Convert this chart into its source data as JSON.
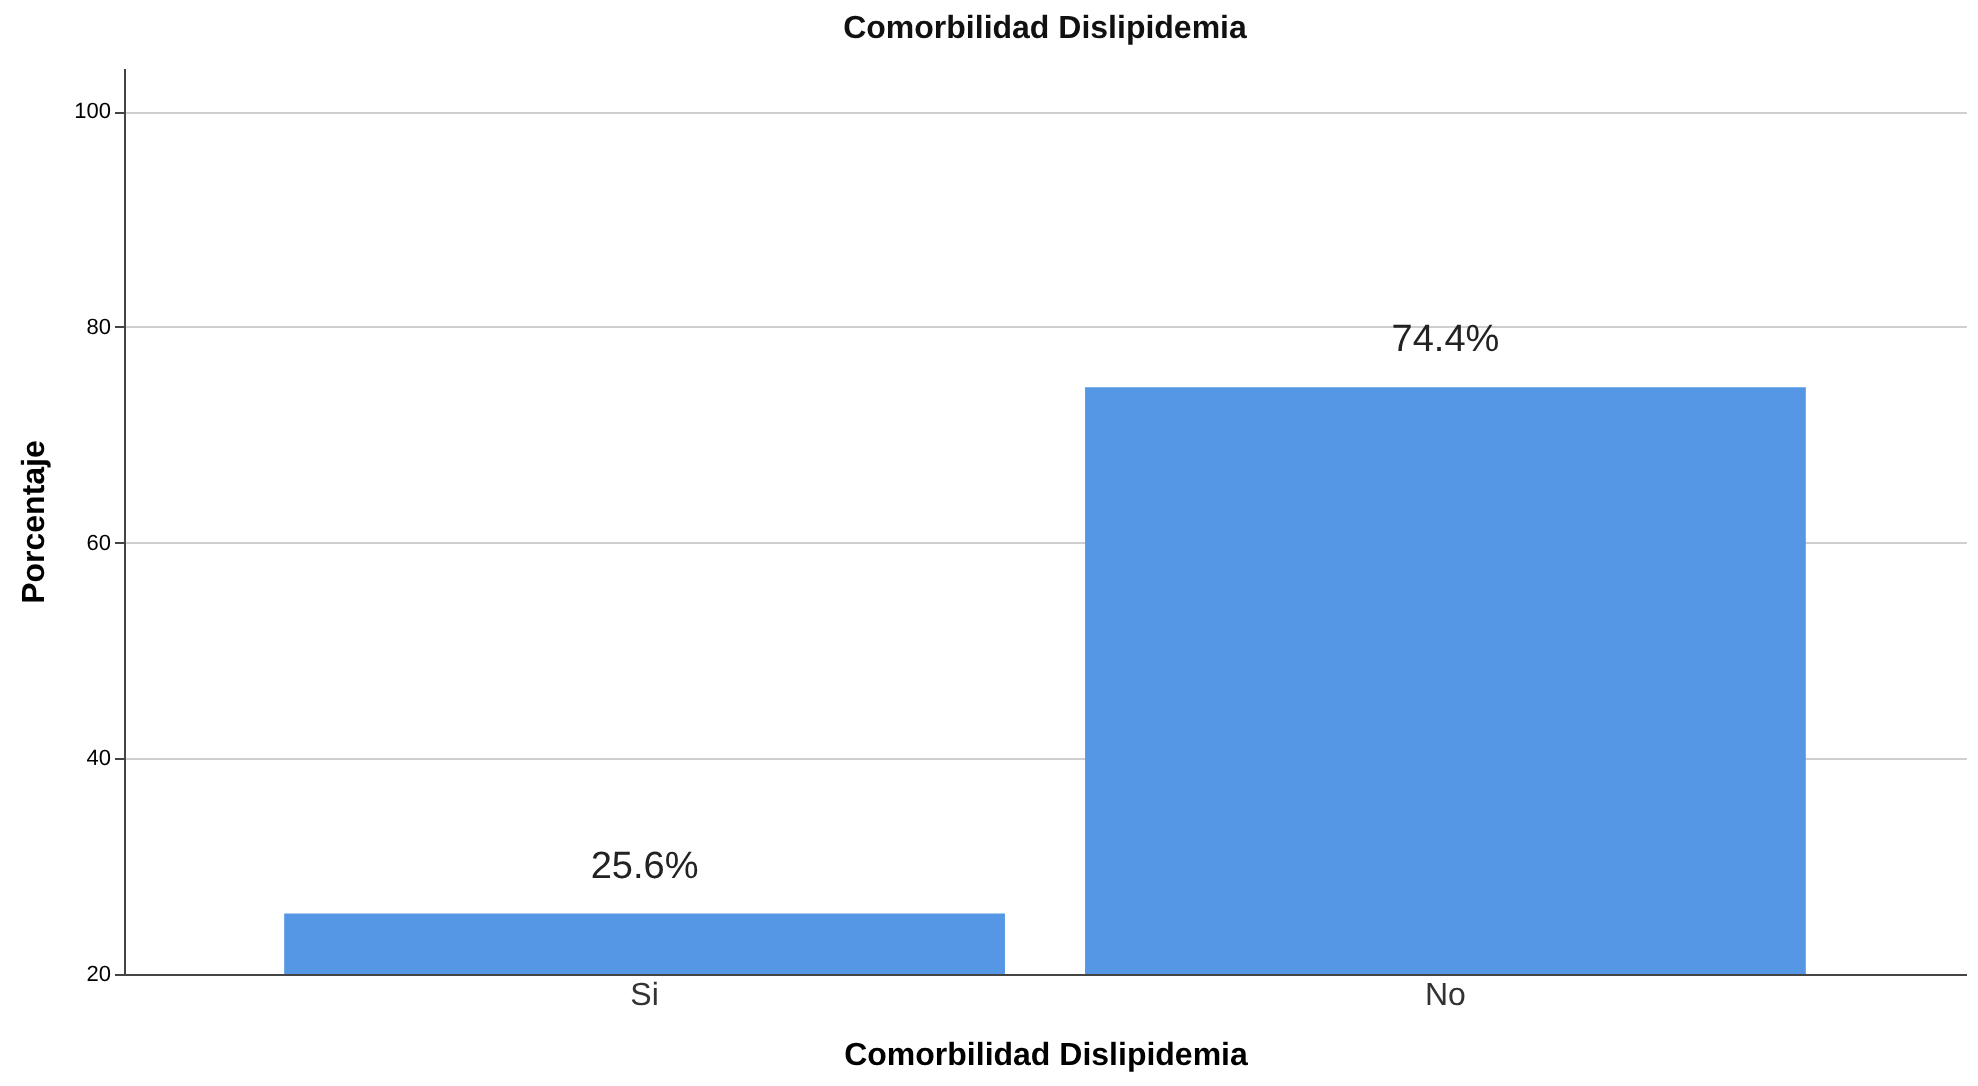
{
  "chart_data": {
    "type": "bar",
    "title": "Comorbilidad Dislipidemia",
    "xlabel": "Comorbilidad Dislipidemia",
    "ylabel": "Porcentaje",
    "categories": [
      "Si",
      "No"
    ],
    "values": [
      25.6,
      74.4
    ],
    "value_labels": [
      "25.6%",
      "74.4%"
    ],
    "color": "#5597e4",
    "ylim": [
      20,
      104
    ],
    "yticks": [
      20,
      40,
      60,
      80,
      100
    ],
    "grid": "y"
  }
}
